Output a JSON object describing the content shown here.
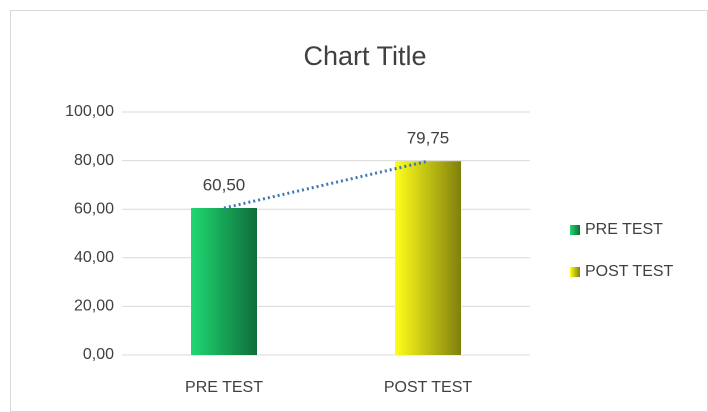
{
  "chart_data": {
    "type": "bar",
    "title": "Chart Title",
    "categories": [
      "PRE TEST",
      "POST TEST"
    ],
    "values": [
      60.5,
      79.75
    ],
    "value_labels": [
      "60,50",
      "79,75"
    ],
    "colors": [
      "#1ed872",
      "#ffff1a"
    ],
    "trendline": {
      "color": "#3e78b4",
      "style": "dotted"
    },
    "ylim": [
      0,
      100
    ],
    "yticks": [
      {
        "value": 0,
        "label": "0,00"
      },
      {
        "value": 20,
        "label": "20,00"
      },
      {
        "value": 40,
        "label": "40,00"
      },
      {
        "value": 60,
        "label": "60,00"
      },
      {
        "value": 80,
        "label": "80,00"
      },
      {
        "value": 100,
        "label": "100,00"
      }
    ],
    "grid": true,
    "legend": "right"
  }
}
